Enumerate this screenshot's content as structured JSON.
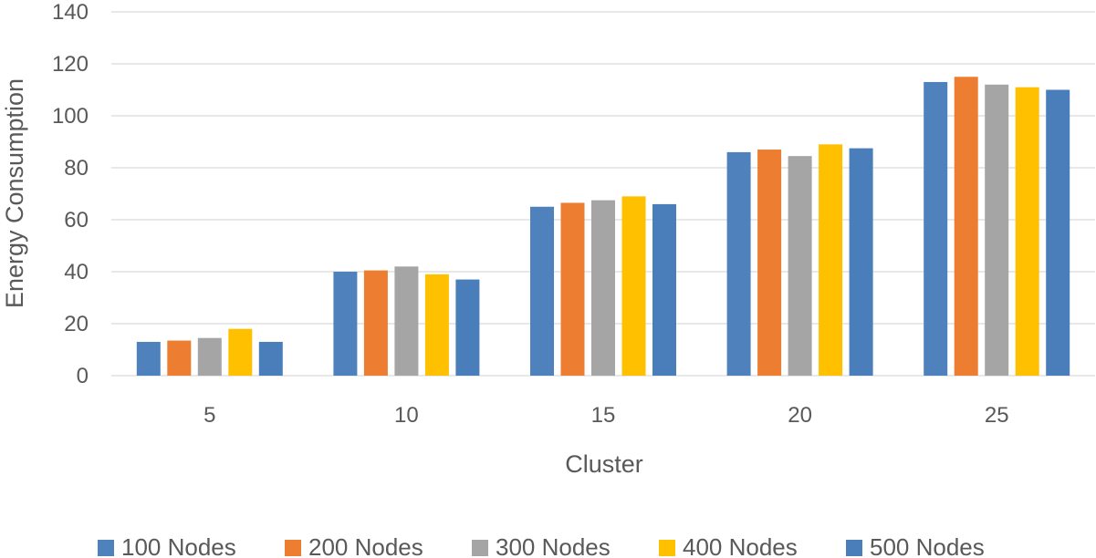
{
  "chart_data": {
    "type": "bar",
    "title": "",
    "xlabel": "Cluster",
    "ylabel": "Energy Consumption",
    "ylim": [
      0,
      140
    ],
    "yticks": [
      0,
      20,
      40,
      60,
      80,
      100,
      120,
      140
    ],
    "grid": true,
    "legend_position": "bottom",
    "categories": [
      "5",
      "10",
      "15",
      "20",
      "25"
    ],
    "series": [
      {
        "name": "100 Nodes",
        "color": "#4f81bd",
        "values": [
          13,
          40,
          65,
          86,
          113
        ]
      },
      {
        "name": "200 Nodes",
        "color": "#ed7d31",
        "values": [
          13.5,
          40.5,
          66.5,
          87,
          115
        ]
      },
      {
        "name": "300 Nodes",
        "color": "#a5a5a5",
        "values": [
          14.5,
          42,
          67.5,
          84.5,
          112
        ]
      },
      {
        "name": "400 Nodes",
        "color": "#ffc000",
        "values": [
          18,
          39,
          69,
          89,
          111
        ]
      },
      {
        "name": "500 Nodes",
        "color": "#4a7ebb",
        "values": [
          13,
          37,
          66,
          87.5,
          110
        ]
      }
    ]
  }
}
